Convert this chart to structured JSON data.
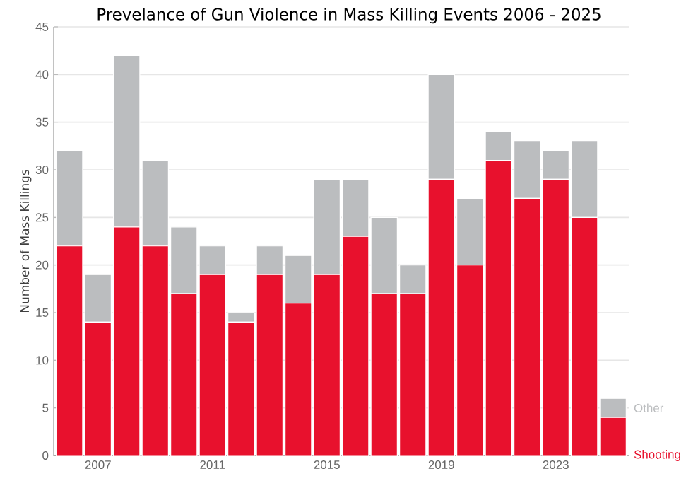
{
  "chart_data": {
    "type": "bar",
    "title": "Prevelance of Gun Violence in Mass Killing Events 2006 - 2025",
    "ylabel": "Number of Mass Killings",
    "categories": [
      null,
      "2007",
      null,
      null,
      null,
      "2011",
      null,
      null,
      null,
      "2015",
      null,
      null,
      null,
      "2019",
      null,
      null,
      null,
      "2023",
      null,
      null
    ],
    "stacked": true,
    "series": [
      {
        "name": "Shooting",
        "color": "#e8112d",
        "values": [
          22,
          14,
          24,
          22,
          17,
          19,
          14,
          19,
          16,
          19,
          23,
          17,
          17,
          29,
          20,
          31,
          27,
          29,
          25,
          4
        ]
      },
      {
        "name": "Other",
        "color": "#bbbdbf",
        "values": [
          10,
          5,
          18,
          9,
          7,
          3,
          1,
          3,
          5,
          10,
          6,
          8,
          3,
          11,
          7,
          3,
          6,
          3,
          8,
          2
        ]
      }
    ],
    "ylim": [
      0,
      45
    ],
    "yticks": [
      0,
      5,
      10,
      15,
      20,
      25,
      30,
      35,
      40,
      45
    ],
    "grid": "y"
  }
}
